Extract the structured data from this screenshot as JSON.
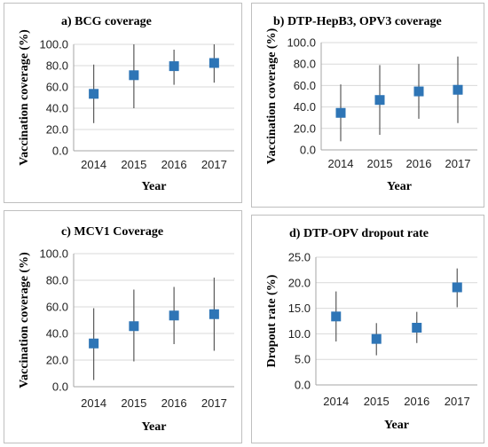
{
  "style": {
    "marker_color": "#2e75b6",
    "whisker_color": "#595959",
    "grid_color": "#d9d9d9"
  },
  "chart_data": [
    {
      "type": "scatter",
      "title": "a) BCG coverage",
      "xlabel": "Year",
      "ylabel": "Vaccination coverage (%)",
      "categories": [
        "2014",
        "2015",
        "2016",
        "2017"
      ],
      "values": [
        53.5,
        71.0,
        79.5,
        82.5
      ],
      "error_low": [
        26,
        40,
        62,
        64
      ],
      "error_high": [
        81,
        100,
        95,
        100
      ],
      "ylim": [
        0,
        100
      ],
      "yticks": [
        "0.0",
        "20.0",
        "40.0",
        "60.0",
        "80.0",
        "100.0"
      ],
      "grid": true
    },
    {
      "type": "scatter",
      "title": "b) DTP-HepB3, OPV3 coverage",
      "xlabel": "Year",
      "ylabel": "Vaccination coverage (%)",
      "categories": [
        "2014",
        "2015",
        "2016",
        "2017"
      ],
      "values": [
        34.5,
        46.5,
        54.5,
        56.0
      ],
      "error_low": [
        8,
        14,
        29,
        25
      ],
      "error_high": [
        61,
        79,
        80,
        87
      ],
      "ylim": [
        0,
        100
      ],
      "yticks": [
        "0.0",
        "20.0",
        "40.0",
        "60.0",
        "80.0",
        "100.0"
      ],
      "grid": true
    },
    {
      "type": "scatter",
      "title": "c) MCV1 Coverage",
      "xlabel": "Year",
      "ylabel": "Vaccination coverage (%)",
      "categories": [
        "2014",
        "2015",
        "2016",
        "2017"
      ],
      "values": [
        32.5,
        45.5,
        53.5,
        54.5
      ],
      "error_low": [
        5,
        19,
        32,
        27
      ],
      "error_high": [
        59,
        73,
        75,
        82
      ],
      "ylim": [
        0,
        100
      ],
      "yticks": [
        "0.0",
        "20.0",
        "40.0",
        "60.0",
        "80.0",
        "100.0"
      ],
      "grid": true
    },
    {
      "type": "scatter",
      "title": "d) DTP-OPV dropout rate",
      "xlabel": "Year",
      "ylabel": "Dropout rate (%)",
      "categories": [
        "2014",
        "2015",
        "2016",
        "2017"
      ],
      "values": [
        13.4,
        9.0,
        11.2,
        19.1
      ],
      "error_low": [
        8.5,
        5.8,
        8.2,
        15.2
      ],
      "error_high": [
        18.3,
        12.1,
        14.3,
        22.8
      ],
      "ylim": [
        0,
        25
      ],
      "yticks": [
        "0.0",
        "5.0",
        "10.0",
        "15.0",
        "20.0",
        "25.0"
      ],
      "grid": true
    }
  ]
}
